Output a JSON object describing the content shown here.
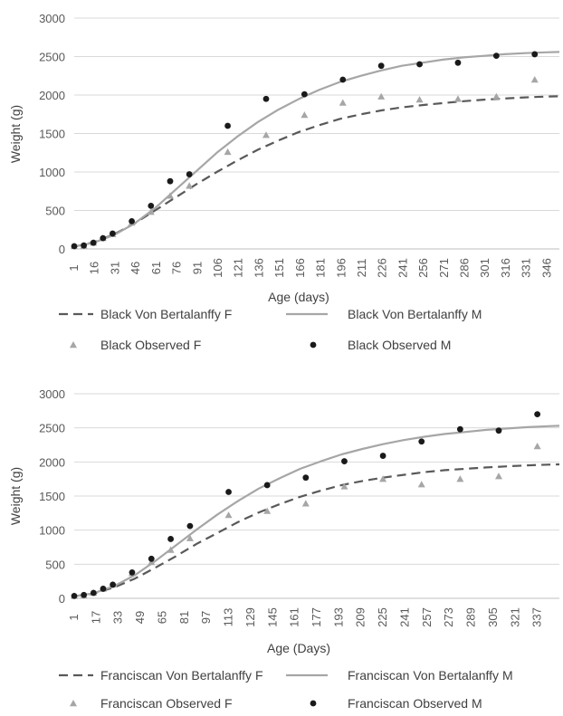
{
  "chart_data": [
    {
      "type": "scatter",
      "xlabel": "Age (days)",
      "ylabel": "Weight (g)",
      "xlim": [
        1,
        355
      ],
      "ylim": [
        0,
        3000
      ],
      "yticks": [
        0,
        500,
        1000,
        1500,
        2000,
        2500,
        3000
      ],
      "xticks": [
        1,
        16,
        31,
        46,
        61,
        76,
        91,
        106,
        121,
        136,
        151,
        166,
        181,
        196,
        211,
        226,
        241,
        256,
        271,
        286,
        301,
        316,
        331,
        346
      ],
      "grid": true,
      "legend_position": "bottom",
      "series": [
        {
          "name": "Black Von Bertalanffy F",
          "kind": "line",
          "style": "dashed",
          "color": "#595959",
          "x": [
            1,
            15,
            30,
            45,
            60,
            75,
            90,
            105,
            120,
            135,
            150,
            165,
            180,
            195,
            210,
            225,
            240,
            255,
            270,
            285,
            300,
            315,
            330,
            345,
            355
          ],
          "y": [
            30,
            85,
            190,
            330,
            500,
            670,
            840,
            1000,
            1150,
            1290,
            1410,
            1520,
            1610,
            1690,
            1750,
            1800,
            1840,
            1870,
            1895,
            1920,
            1940,
            1955,
            1970,
            1980,
            1985
          ]
        },
        {
          "name": "Black Von Bertalanffy M",
          "kind": "line",
          "style": "solid",
          "color": "#a6a6a6",
          "x": [
            1,
            15,
            30,
            45,
            60,
            75,
            90,
            105,
            120,
            135,
            150,
            165,
            180,
            195,
            210,
            225,
            240,
            255,
            270,
            285,
            300,
            315,
            330,
            345,
            355
          ],
          "y": [
            30,
            80,
            180,
            330,
            530,
            770,
            1010,
            1250,
            1460,
            1650,
            1810,
            1950,
            2070,
            2170,
            2250,
            2320,
            2380,
            2420,
            2460,
            2490,
            2510,
            2530,
            2545,
            2555,
            2560
          ]
        },
        {
          "name": "Black Observed F",
          "kind": "scatter",
          "marker": "triangle",
          "color": "#a6a6a6",
          "x": [
            1,
            8,
            15,
            22,
            29,
            43,
            57,
            71,
            85,
            113,
            141,
            169,
            197,
            225,
            253,
            281,
            309,
            337
          ],
          "y": [
            35,
            40,
            80,
            140,
            190,
            340,
            480,
            690,
            820,
            1260,
            1480,
            1740,
            1900,
            1980,
            1940,
            1950,
            1980,
            2200
          ]
        },
        {
          "name": "Black Observed M",
          "kind": "scatter",
          "marker": "circle",
          "color": "#1a1a1a",
          "x": [
            1,
            8,
            15,
            22,
            29,
            43,
            57,
            71,
            85,
            113,
            141,
            169,
            197,
            225,
            253,
            281,
            309,
            337
          ],
          "y": [
            35,
            45,
            80,
            140,
            200,
            360,
            560,
            880,
            970,
            1600,
            1950,
            2010,
            2200,
            2380,
            2400,
            2420,
            2510,
            2530
          ]
        }
      ]
    },
    {
      "type": "scatter",
      "xlabel": "Age (Days)",
      "ylabel": "Weight (g)",
      "xlim": [
        1,
        353
      ],
      "ylim": [
        0,
        3000
      ],
      "yticks": [
        0,
        500,
        1000,
        1500,
        2000,
        2500,
        3000
      ],
      "xticks": [
        1,
        17,
        33,
        49,
        65,
        81,
        97,
        113,
        129,
        145,
        161,
        177,
        193,
        209,
        225,
        241,
        257,
        273,
        289,
        305,
        321,
        337
      ],
      "grid": true,
      "legend_position": "bottom",
      "series": [
        {
          "name": "Franciscan Von Bertalanffy F",
          "kind": "line",
          "style": "dashed",
          "color": "#595959",
          "x": [
            1,
            15,
            30,
            45,
            60,
            75,
            90,
            105,
            120,
            135,
            150,
            165,
            180,
            195,
            210,
            225,
            240,
            255,
            270,
            285,
            300,
            315,
            330,
            345,
            353
          ],
          "y": [
            30,
            70,
            160,
            290,
            450,
            620,
            800,
            960,
            1120,
            1260,
            1380,
            1490,
            1580,
            1660,
            1720,
            1770,
            1810,
            1850,
            1880,
            1900,
            1920,
            1935,
            1950,
            1960,
            1965
          ]
        },
        {
          "name": "Franciscan Von Bertalanffy M",
          "kind": "line",
          "style": "solid",
          "color": "#a6a6a6",
          "x": [
            1,
            15,
            30,
            45,
            60,
            75,
            90,
            105,
            120,
            135,
            150,
            165,
            180,
            195,
            210,
            225,
            240,
            255,
            270,
            285,
            300,
            315,
            330,
            345,
            353
          ],
          "y": [
            30,
            75,
            180,
            340,
            550,
            780,
            1010,
            1230,
            1430,
            1610,
            1760,
            1900,
            2010,
            2110,
            2190,
            2260,
            2320,
            2370,
            2410,
            2440,
            2470,
            2490,
            2510,
            2525,
            2530
          ]
        },
        {
          "name": "Franciscan Observed F",
          "kind": "scatter",
          "marker": "triangle",
          "color": "#a6a6a6",
          "x": [
            1,
            8,
            15,
            22,
            29,
            43,
            57,
            71,
            85,
            113,
            141,
            169,
            197,
            225,
            253,
            281,
            309,
            337
          ],
          "y": [
            35,
            40,
            80,
            140,
            200,
            370,
            530,
            710,
            880,
            1220,
            1280,
            1390,
            1640,
            1750,
            1670,
            1750,
            1790,
            2230
          ]
        },
        {
          "name": "Franciscan Observed M",
          "kind": "scatter",
          "marker": "circle",
          "color": "#1a1a1a",
          "x": [
            1,
            8,
            15,
            22,
            29,
            43,
            57,
            71,
            85,
            113,
            141,
            169,
            197,
            225,
            253,
            281,
            309,
            337
          ],
          "y": [
            35,
            50,
            80,
            140,
            200,
            380,
            580,
            870,
            1060,
            1560,
            1660,
            1770,
            2010,
            2090,
            2300,
            2480,
            2460,
            2700
          ]
        }
      ]
    }
  ]
}
